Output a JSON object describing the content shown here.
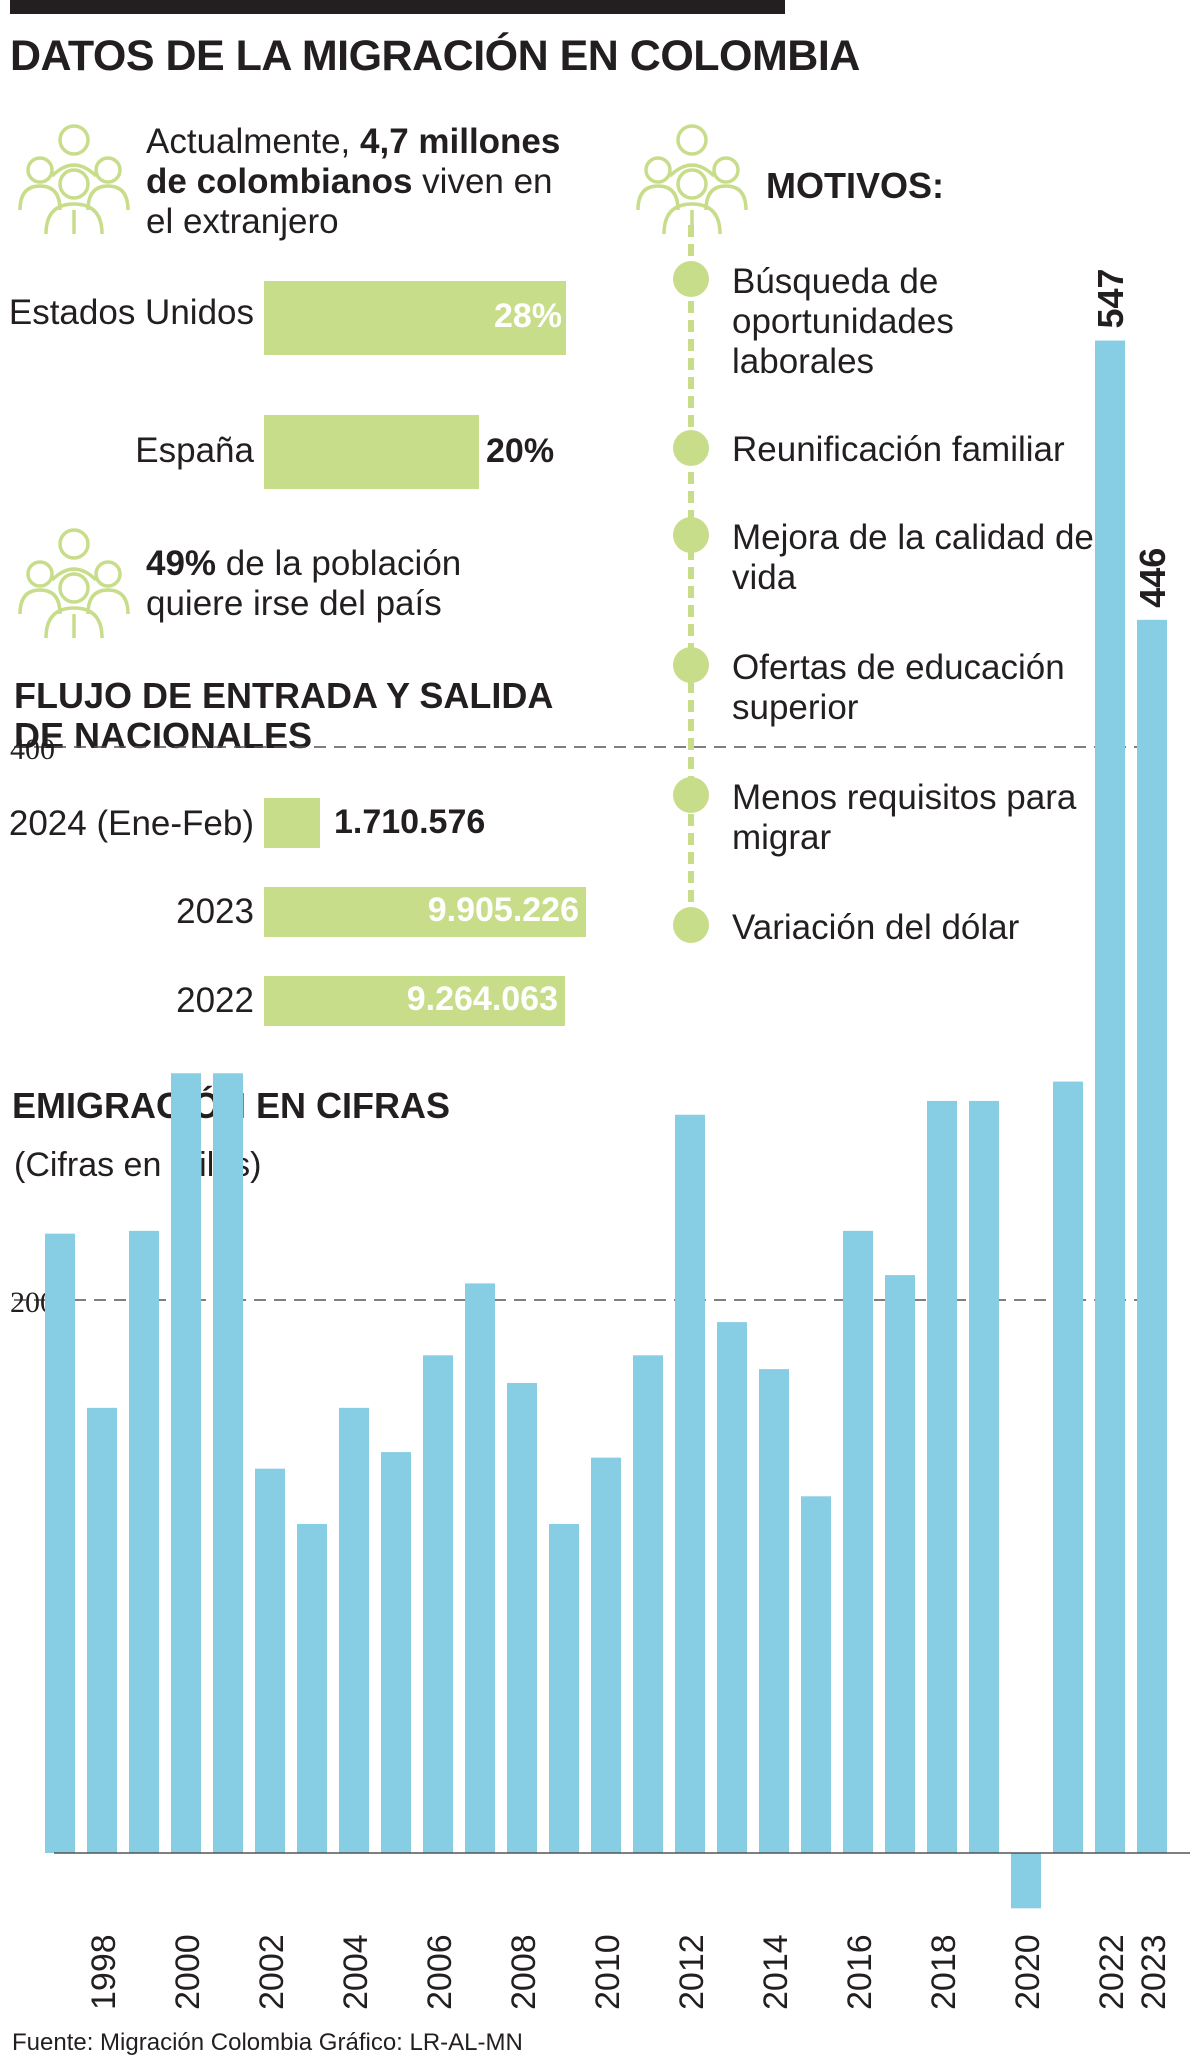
{
  "header": {
    "title": "DATOS DE LA MIGRACIÓN EN COLOMBIA"
  },
  "intro": {
    "prefix": "Actualmente, ",
    "highlight_1": "4,7 millones",
    "highlight_2": "de colombianos",
    "suffix_1": " viven en",
    "suffix_2": "el extranjero"
  },
  "destinations": [
    {
      "label": "Estados Unidos",
      "value": "28%",
      "share": 28
    },
    {
      "label": "España",
      "value": "20%",
      "share": 20
    }
  ],
  "wish": {
    "highlight": "49%",
    "line1_rest": " de la población",
    "line2": "quiere irse del país"
  },
  "flow": {
    "title_line1": "FLUJO DE ENTRADA Y SALIDA",
    "title_line2": "DE NACIONALES",
    "rows": [
      {
        "label": "2024 (Ene-Feb)",
        "value": "1.710.576",
        "amount": 1710576
      },
      {
        "label": "2023",
        "value": "9.905.226",
        "amount": 9905226
      },
      {
        "label": "2022",
        "value": "9.264.063",
        "amount": 9264063
      }
    ]
  },
  "motivos": {
    "title": "MOTIVOS:",
    "items": [
      [
        "Búsqueda de",
        "oportunidades",
        "laborales"
      ],
      [
        "Reunificación familiar"
      ],
      [
        "Mejora de la calidad de",
        "vida"
      ],
      [
        "Ofertas de educación",
        "superior"
      ],
      [
        "Menos requisitos para",
        "migrar"
      ],
      [
        "Variación del dólar"
      ]
    ]
  },
  "icons": {
    "people": "people-group-icon"
  },
  "colors": {
    "accent_green": "#c8dd8a",
    "bar_blue": "#87cde4",
    "text": "#231f20"
  },
  "chart_data": {
    "type": "bar",
    "title": "EMIGRACIÓN EN CIFRAS",
    "subtitle": "(Cifras en miles)",
    "categories": [
      "1997",
      "1998",
      "1999",
      "2000",
      "2001",
      "2002",
      "2003",
      "2004",
      "2005",
      "2006",
      "2007",
      "2008",
      "2009",
      "2010",
      "2011",
      "2012",
      "2013",
      "2014",
      "2015",
      "2016",
      "2017",
      "2018",
      "2019",
      "2020",
      "2021",
      "2022",
      "2023"
    ],
    "x_tick_labels": [
      "1998",
      "2000",
      "2002",
      "2004",
      "2006",
      "2008",
      "2010",
      "2012",
      "2014",
      "2016",
      "2018",
      "2020",
      "2022",
      "2023"
    ],
    "values": [
      224,
      161,
      225,
      282,
      282,
      139,
      119,
      161,
      145,
      180,
      206,
      170,
      119,
      143,
      180,
      267,
      192,
      175,
      129,
      225,
      209,
      272,
      272,
      -20,
      279,
      547,
      446
    ],
    "data_labels": [
      {
        "category": "2022",
        "text": "547"
      },
      {
        "category": "2023",
        "text": "446"
      }
    ],
    "y_ticks": [
      200,
      400
    ],
    "ylim": [
      -35,
      560
    ],
    "grid": "dashed horizontal",
    "xlabel": "",
    "ylabel": ""
  },
  "footer": {
    "source": "Fuente: Migración Colombia   Gráfico: LR-AL-MN"
  }
}
